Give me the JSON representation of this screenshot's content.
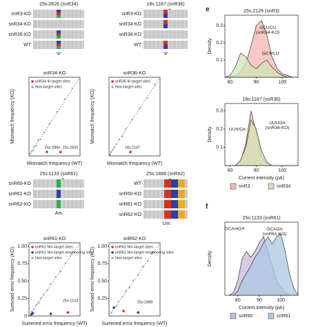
{
  "panel_labels": [
    "e",
    "f"
  ],
  "tracks": [
    {
      "title": "25s:2826 (snR34)",
      "rows": [
        "snR3-KO",
        "snR34-KO",
        "snR36-KO",
        "WT"
      ],
      "mark": "Ψ"
    },
    {
      "title": "18s:1187 (snR36)",
      "rows": [
        "snR3-KO",
        "snR34-KO",
        "snR36-KO",
        "WT"
      ],
      "mark": "Ψ",
      "star": "*"
    },
    {
      "title": "25s:1133 (snR61)",
      "rows": [
        "snR60-KO",
        "snR61-KO",
        "snR62-KO"
      ],
      "mark": "Am",
      "star": "*"
    },
    {
      "title": "25s:1888 (snR62)",
      "rows": [
        "WT",
        "snR60-KO",
        "snR61-KO",
        "snR62-KO"
      ],
      "mark": "Um",
      "star": "*"
    }
  ],
  "chart_data": [
    {
      "type": "scatter",
      "title": "snR34-KO",
      "x_label": "Mismatch frequency (WT)",
      "y_label": "Mismatch frequency (KO)",
      "xlim": [
        0,
        1
      ],
      "ylim": [
        0,
        1
      ],
      "annotations": [
        "25s:2880",
        "25s:2826"
      ],
      "series": [
        {
          "name": "snR34 Ψ-target sites",
          "color": "#d7301f",
          "x": [
            0.35,
            0.62
          ],
          "y": [
            0.05,
            0.05
          ]
        },
        {
          "name": "Non-target sites",
          "color": "#aaaaaa",
          "x": [
            0.02,
            0.05,
            0.08,
            0.1,
            0.14,
            0.18,
            0.22,
            0.3,
            0.4,
            0.55,
            0.7,
            0.85
          ],
          "y": [
            0.03,
            0.06,
            0.07,
            0.12,
            0.13,
            0.2,
            0.21,
            0.3,
            0.41,
            0.56,
            0.72,
            0.86
          ]
        }
      ]
    },
    {
      "type": "scatter",
      "title": "snR36-KO",
      "x_label": "Mismatch frequency (WT)",
      "y_label": "Mismatch frequency (KO)",
      "xlim": [
        0,
        1
      ],
      "ylim": [
        0,
        1
      ],
      "annotations": [
        "18s:1187"
      ],
      "series": [
        {
          "name": "snR36 Ψ-target sites",
          "color": "#d7301f",
          "x": [
            0.42
          ],
          "y": [
            0.05
          ]
        },
        {
          "name": "Non-target sites",
          "color": "#aaaaaa",
          "x": [
            0.02,
            0.04,
            0.07,
            0.1,
            0.15,
            0.2,
            0.26,
            0.33,
            0.45,
            0.6,
            0.75,
            0.9
          ],
          "y": [
            0.02,
            0.05,
            0.08,
            0.11,
            0.15,
            0.21,
            0.25,
            0.34,
            0.46,
            0.61,
            0.74,
            0.91
          ]
        }
      ]
    },
    {
      "type": "scatter",
      "title": "snR61-KO",
      "x_label": "Summed error frequency (WT)",
      "y_label": "Summed error frequency (KO)",
      "xlim": [
        0,
        1.05
      ],
      "ylim": [
        0,
        1.05
      ],
      "yticks": [
        0,
        {
          "value": 0.25,
          "label": "0.25"
        },
        {
          "value": 0.5,
          "label": "0.50"
        },
        {
          "value": 0.75,
          "label": "0.75"
        },
        {
          "value": 1,
          "label": "1.00"
        }
      ],
      "annotations": [
        "25s:1133"
      ],
      "series": [
        {
          "name": "snR61 Nm-target sites",
          "color": "#d7301f",
          "x": [
            0.8
          ],
          "y": [
            0.05
          ]
        },
        {
          "name": "snR61 Nm-target neighboring sites",
          "color": "#2b3fb0",
          "x": [
            0.05,
            0.08,
            0.45
          ],
          "y": [
            0.02,
            0.04,
            0.03
          ]
        },
        {
          "name": "Non-target sites",
          "color": "#aaaaaa",
          "x": [
            0.05,
            0.1,
            0.15,
            0.2,
            0.25,
            0.3,
            0.38,
            0.45,
            0.55,
            0.65,
            0.75,
            0.85
          ],
          "y": [
            0.06,
            0.1,
            0.16,
            0.19,
            0.26,
            0.31,
            0.37,
            0.46,
            0.56,
            0.64,
            0.76,
            0.86
          ]
        }
      ]
    },
    {
      "type": "scatter",
      "title": "snR62-KO",
      "x_label": "Summed error frequency (WT)",
      "y_label": "Summed error frequency (KO)",
      "xlim": [
        0,
        1.05
      ],
      "ylim": [
        0,
        1.05
      ],
      "yticks": [
        {
          "value": 0.25,
          "label": "0.25"
        },
        {
          "value": 0.5,
          "label": "0.50"
        },
        {
          "value": 0.75,
          "label": "0.75"
        },
        {
          "value": 1,
          "label": "1.00"
        }
      ],
      "annotations": [
        "25s:1888"
      ],
      "series": [
        {
          "name": "snR62 Nm-target sites",
          "color": "#d7301f",
          "x": [
            0.3
          ],
          "y": [
            0.07
          ]
        },
        {
          "name": "snR62 Nm-target neighboring sites",
          "color": "#2b3fb0",
          "x": [
            0.1,
            0.6
          ],
          "y": [
            0.12,
            0.05
          ]
        },
        {
          "name": "Non-target sites",
          "color": "#aaaaaa",
          "x": [
            0.05,
            0.1,
            0.15,
            0.2,
            0.28,
            0.35,
            0.42,
            0.5,
            0.6,
            0.7,
            0.8,
            0.9
          ],
          "y": [
            0.05,
            0.11,
            0.14,
            0.21,
            0.27,
            0.36,
            0.41,
            0.51,
            0.59,
            0.71,
            0.79,
            0.91
          ]
        }
      ]
    },
    {
      "type": "density",
      "title": "25s:2129 (snR3)",
      "y_label": "Density",
      "annotations": [
        "GCUCU\n(snR34-KO)",
        "GCΨCU"
      ],
      "xlim": [
        78,
        106
      ],
      "ylim": [
        0,
        0.36
      ],
      "xticks": [
        80,
        90,
        100
      ],
      "yticks": [
        0.1,
        0.2,
        0.3
      ],
      "x": [
        78,
        80,
        82,
        84,
        86,
        88,
        90,
        92,
        94,
        96,
        98,
        100,
        102,
        104,
        106
      ],
      "series": [
        {
          "name": "snR3",
          "color": "#f4b6b0",
          "values": [
            0,
            0,
            0.01,
            0.03,
            0.08,
            0.18,
            0.3,
            0.33,
            0.25,
            0.12,
            0.05,
            0.02,
            0.01,
            0,
            0
          ]
        },
        {
          "name": "snR34",
          "color": "#cfe6b4",
          "values": [
            0,
            0.01,
            0.06,
            0.14,
            0.12,
            0.07,
            0.05,
            0.08,
            0.1,
            0.06,
            0.03,
            0.01,
            0,
            0,
            0
          ]
        }
      ]
    },
    {
      "type": "density",
      "title": "18s:1187 (snR36)",
      "y_label": "Density",
      "x_label": "Current intensity (pA)",
      "annotations": [
        "UUΨGA",
        "UUUGA\n(snR36-KO)"
      ],
      "xlim": [
        78,
        106
      ],
      "ylim": [
        0,
        0.34
      ],
      "xticks": [
        80,
        90,
        100
      ],
      "yticks": [
        0.1,
        0.2,
        0.3
      ],
      "x": [
        78,
        80,
        82,
        84,
        86,
        88,
        90,
        92,
        94,
        96,
        98,
        100,
        102,
        104,
        106
      ],
      "series": [
        {
          "name": "snR3",
          "color": "#f4b6b0",
          "values": [
            0,
            0,
            0,
            0.02,
            0.12,
            0.3,
            0.18,
            0.05,
            0.01,
            0,
            0,
            0,
            0,
            0,
            0
          ]
        },
        {
          "name": "snR34",
          "color": "#cfe6b4",
          "values": [
            0,
            0,
            0,
            0.03,
            0.1,
            0.25,
            0.2,
            0.08,
            0.02,
            0,
            0,
            0,
            0,
            0,
            0
          ]
        }
      ]
    },
    {
      "type": "density",
      "title": "25s:1133 (snR61)",
      "y_label": "Density",
      "x_label": "Current intensity (pA)",
      "annotations": [
        "GCAmGA",
        "GCAGA\n(snR61-KO)"
      ],
      "xlim": [
        74,
        108
      ],
      "ylim": [
        0,
        0.05
      ],
      "xticks": [
        80,
        90,
        100
      ],
      "x": [
        76,
        78,
        80,
        82,
        84,
        86,
        88,
        90,
        92,
        94,
        96,
        98,
        100,
        102,
        104,
        106,
        108
      ],
      "series": [
        {
          "name": "snR60",
          "color": "#c9b8dc",
          "values": [
            0,
            0.002,
            0.01,
            0.025,
            0.03,
            0.026,
            0.03,
            0.036,
            0.04,
            0.03,
            0.02,
            0.01,
            0.005,
            0.002,
            0,
            0,
            0
          ]
        },
        {
          "name": "snR61",
          "color": "#a9c8e2",
          "values": [
            0,
            0,
            0.003,
            0.01,
            0.015,
            0.02,
            0.026,
            0.03,
            0.036,
            0.04,
            0.035,
            0.04,
            0.042,
            0.03,
            0.015,
            0.005,
            0
          ]
        }
      ]
    }
  ]
}
